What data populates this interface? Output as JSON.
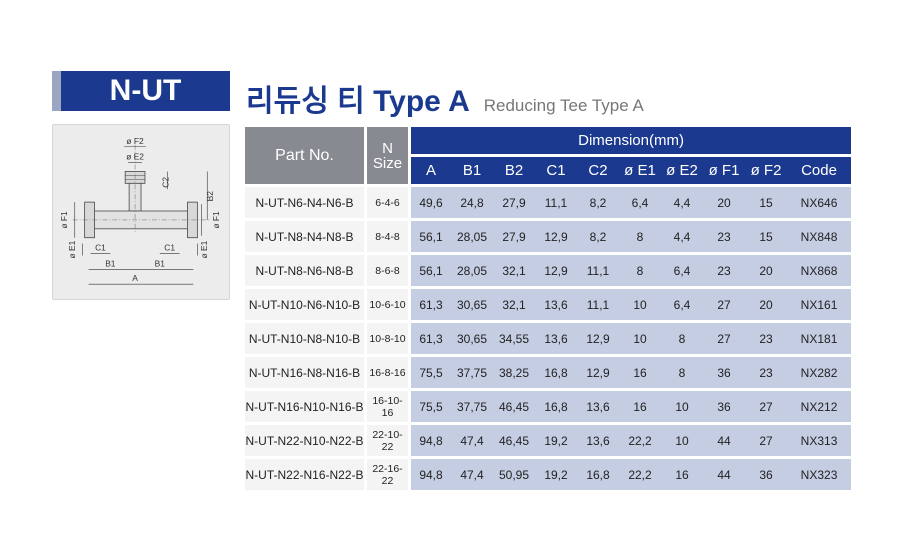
{
  "header": {
    "code": "N-UT",
    "title_ko": "리듀싱 티 Type A",
    "title_en": "Reducing Tee Type A"
  },
  "diagram": {
    "labels": {
      "f2": "ø F2",
      "e2": "ø E2",
      "c2": "C2",
      "b2": "B2",
      "f1_left": "ø F1",
      "e1_left": "ø E1",
      "f1_right": "ø F1",
      "e1_right": "ø E1",
      "c1_left": "C1",
      "c1_right": "C1",
      "b1_left": "B1",
      "b1_right": "B1",
      "a": "A"
    }
  },
  "table": {
    "part_header": "Part No.",
    "size_header_line1": "N",
    "size_header_line2": "Size",
    "dimension_header": "Dimension(mm)",
    "columns": [
      "A",
      "B1",
      "B2",
      "C1",
      "C2",
      "ø E1",
      "ø E2",
      "ø F1",
      "ø F2",
      "Code"
    ],
    "rows": [
      {
        "part": "N-UT-N6-N4-N6-B",
        "size": "6-4-6",
        "a": "49,6",
        "b1": "24,8",
        "b2": "27,9",
        "c1": "11,1",
        "c2": "8,2",
        "e1": "6,4",
        "e2": "4,4",
        "f1": "20",
        "f2": "15",
        "code": "NX646"
      },
      {
        "part": "N-UT-N8-N4-N8-B",
        "size": "8-4-8",
        "a": "56,1",
        "b1": "28,05",
        "b2": "27,9",
        "c1": "12,9",
        "c2": "8,2",
        "e1": "8",
        "e2": "4,4",
        "f1": "23",
        "f2": "15",
        "code": "NX848"
      },
      {
        "part": "N-UT-N8-N6-N8-B",
        "size": "8-6-8",
        "a": "56,1",
        "b1": "28,05",
        "b2": "32,1",
        "c1": "12,9",
        "c2": "11,1",
        "e1": "8",
        "e2": "6,4",
        "f1": "23",
        "f2": "20",
        "code": "NX868"
      },
      {
        "part": "N-UT-N10-N6-N10-B",
        "size": "10-6-10",
        "a": "61,3",
        "b1": "30,65",
        "b2": "32,1",
        "c1": "13,6",
        "c2": "11,1",
        "e1": "10",
        "e2": "6,4",
        "f1": "27",
        "f2": "20",
        "code": "NX161"
      },
      {
        "part": "N-UT-N10-N8-N10-B",
        "size": "10-8-10",
        "a": "61,3",
        "b1": "30,65",
        "b2": "34,55",
        "c1": "13,6",
        "c2": "12,9",
        "e1": "10",
        "e2": "8",
        "f1": "27",
        "f2": "23",
        "code": "NX181"
      },
      {
        "part": "N-UT-N16-N8-N16-B",
        "size": "16-8-16",
        "a": "75,5",
        "b1": "37,75",
        "b2": "38,25",
        "c1": "16,8",
        "c2": "12,9",
        "e1": "16",
        "e2": "8",
        "f1": "36",
        "f2": "23",
        "code": "NX282"
      },
      {
        "part": "N-UT-N16-N10-N16-B",
        "size": "16-10-16",
        "a": "75,5",
        "b1": "37,75",
        "b2": "46,45",
        "c1": "16,8",
        "c2": "13,6",
        "e1": "16",
        "e2": "10",
        "f1": "36",
        "f2": "27",
        "code": "NX212"
      },
      {
        "part": "N-UT-N22-N10-N22-B",
        "size": "22-10-22",
        "a": "94,8",
        "b1": "47,4",
        "b2": "46,45",
        "c1": "19,2",
        "c2": "13,6",
        "e1": "22,2",
        "e2": "10",
        "f1": "44",
        "f2": "27",
        "code": "NX313"
      },
      {
        "part": "N-UT-N22-N16-N22-B",
        "size": "22-16-22",
        "a": "94,8",
        "b1": "47,4",
        "b2": "50,95",
        "c1": "19,2",
        "c2": "16,8",
        "e1": "22,2",
        "e2": "16",
        "f1": "44",
        "f2": "36",
        "code": "NX323"
      }
    ]
  },
  "colors": {
    "brand_blue": "#1b3a8f",
    "header_gray": "#878a91",
    "cell_blue": "#c5cde3",
    "cell_gray": "#f4f4f4"
  }
}
